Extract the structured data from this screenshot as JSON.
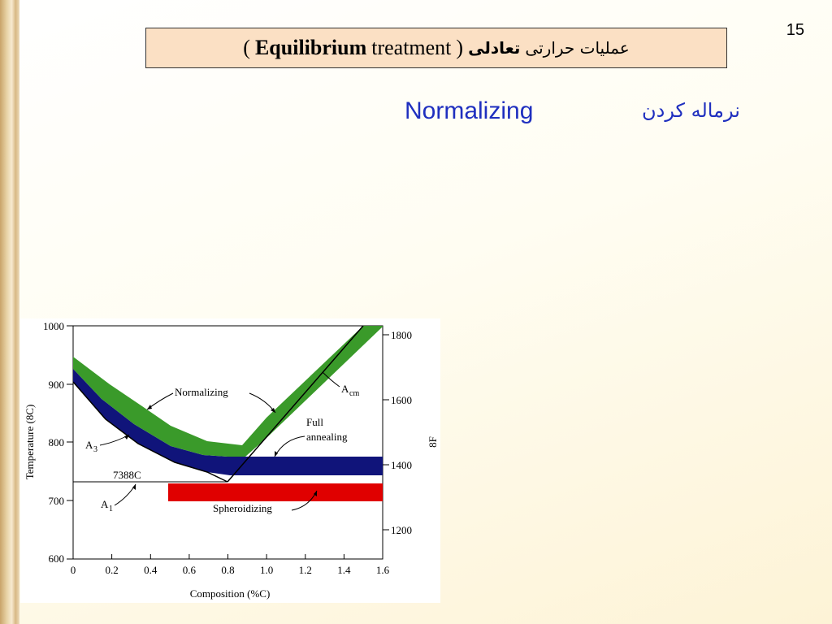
{
  "slide": {
    "number": "15",
    "title": {
      "open_paren": "(",
      "bold": "Equilibrium",
      "regular": "treatment",
      "close_paren": ")",
      "fa_bold": "تعادلی",
      "fa": "عملیات حرارتی"
    },
    "subtitle_en": "Normalizing",
    "subtitle_fa": "نرماله کردن"
  },
  "figure": {
    "y_axis_label": "Temperature (8C)",
    "y_axis_right_label": "8F",
    "x_axis_label": "Composition (%C)",
    "y_ticks_left": [
      "1000",
      "900",
      "800",
      "700",
      "600"
    ],
    "y_ticks_right": [
      "1800",
      "1600",
      "1400",
      "1200"
    ],
    "x_ticks": [
      "0",
      "0.2",
      "0.4",
      "0.6",
      "0.8",
      "1.0",
      "1.2",
      "1.4",
      "1.6"
    ],
    "eutectoid_label": "7388C",
    "labels": {
      "normalizing": "Normalizing",
      "acm": "A",
      "acm_sub": "cm",
      "full_annealing_1": "Full",
      "full_annealing_2": "annealing",
      "a3": "A",
      "a3_sub": "3",
      "a1": "A",
      "a1_sub": "1",
      "spheroidizing": "Spheroidizing"
    },
    "colors": {
      "normalizing_band": "#3a9a2a",
      "full_annealing_band": "#10147a",
      "spheroidizing_band": "#e00000"
    }
  }
}
